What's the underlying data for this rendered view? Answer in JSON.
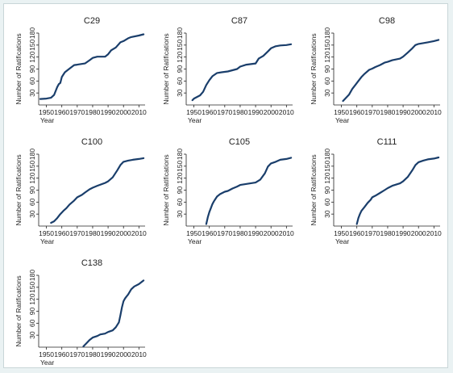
{
  "figure": {
    "background": "#ffffff",
    "line_color": "#1a3e6b",
    "axis_color": "#222222"
  },
  "chart_data": [
    {
      "type": "line",
      "title": "C29",
      "xlabel": "Year",
      "ylabel": "Number of Ratifications",
      "xlim": [
        1945,
        2014
      ],
      "ylim": [
        0,
        180
      ],
      "xticks": [
        1950,
        1960,
        1970,
        1980,
        1990,
        2000,
        2010
      ],
      "yticks": [
        30,
        60,
        90,
        120,
        150,
        180
      ],
      "x": [
        1946,
        1950,
        1953,
        1955,
        1957,
        1958,
        1959,
        1960,
        1961,
        1962,
        1964,
        1966,
        1968,
        1970,
        1975,
        1978,
        1980,
        1983,
        1988,
        1990,
        1992,
        1995,
        1998,
        2000,
        2003,
        2005,
        2010,
        2013
      ],
      "y": [
        15,
        16,
        18,
        25,
        45,
        52,
        55,
        70,
        76,
        82,
        88,
        94,
        100,
        101,
        104,
        112,
        118,
        121,
        121,
        127,
        137,
        144,
        157,
        160,
        167,
        170,
        174,
        177
      ]
    },
    {
      "type": "line",
      "title": "C87",
      "xlabel": "Year",
      "ylabel": "Number of Ratifications",
      "xlim": [
        1945,
        2014
      ],
      "ylim": [
        0,
        180
      ],
      "xticks": [
        1950,
        1960,
        1970,
        1980,
        1990,
        2000,
        2010
      ],
      "yticks": [
        30,
        60,
        90,
        120,
        150,
        180
      ],
      "x": [
        1949,
        1950,
        1952,
        1954,
        1956,
        1958,
        1960,
        1962,
        1965,
        1968,
        1972,
        1975,
        1978,
        1980,
        1984,
        1990,
        1992,
        1995,
        1998,
        2000,
        2003,
        2006,
        2010,
        2013
      ],
      "y": [
        12,
        16,
        20,
        24,
        33,
        50,
        62,
        72,
        80,
        82,
        84,
        87,
        90,
        96,
        101,
        104,
        116,
        123,
        134,
        142,
        147,
        149,
        150,
        152
      ]
    },
    {
      "type": "line",
      "title": "C98",
      "xlabel": "Year",
      "ylabel": "Number of Ratifications",
      "xlim": [
        1945,
        2014
      ],
      "ylim": [
        0,
        180
      ],
      "xticks": [
        1950,
        1960,
        1970,
        1980,
        1990,
        2000,
        2010
      ],
      "yticks": [
        30,
        60,
        90,
        120,
        150,
        180
      ],
      "x": [
        1951,
        1953,
        1955,
        1957,
        1959,
        1961,
        1963,
        1965,
        1968,
        1970,
        1972,
        1975,
        1978,
        1980,
        1983,
        1988,
        1990,
        1993,
        1996,
        1998,
        2000,
        2003,
        2006,
        2010,
        2013
      ],
      "y": [
        10,
        18,
        26,
        40,
        50,
        60,
        70,
        78,
        88,
        91,
        95,
        100,
        106,
        108,
        112,
        116,
        121,
        131,
        142,
        150,
        153,
        155,
        157,
        160,
        163
      ]
    },
    {
      "type": "line",
      "title": "C100",
      "xlabel": "Year",
      "ylabel": "Number of Ratifications",
      "xlim": [
        1945,
        2014
      ],
      "ylim": [
        0,
        180
      ],
      "xticks": [
        1950,
        1960,
        1970,
        1980,
        1990,
        2000,
        2010
      ],
      "yticks": [
        30,
        60,
        90,
        120,
        150,
        180
      ],
      "x": [
        1953,
        1955,
        1957,
        1959,
        1961,
        1963,
        1965,
        1968,
        1970,
        1973,
        1975,
        1978,
        1980,
        1983,
        1988,
        1990,
        1993,
        1996,
        1998,
        2000,
        2003,
        2006,
        2010,
        2013
      ],
      "y": [
        8,
        12,
        20,
        30,
        38,
        45,
        54,
        64,
        72,
        78,
        84,
        92,
        96,
        101,
        108,
        112,
        122,
        140,
        153,
        161,
        164,
        166,
        168,
        170
      ]
    },
    {
      "type": "line",
      "title": "C105",
      "xlabel": "Year",
      "ylabel": "Number of Ratifications",
      "xlim": [
        1945,
        2014
      ],
      "ylim": [
        0,
        180
      ],
      "xticks": [
        1950,
        1960,
        1970,
        1980,
        1990,
        2000,
        2010
      ],
      "yticks": [
        30,
        60,
        90,
        120,
        150,
        180
      ],
      "x": [
        1958,
        1959,
        1960,
        1961,
        1962,
        1963,
        1964,
        1965,
        1967,
        1970,
        1972,
        1975,
        1978,
        1980,
        1985,
        1990,
        1993,
        1996,
        1998,
        2000,
        2003,
        2006,
        2010,
        2013
      ],
      "y": [
        5,
        22,
        35,
        45,
        55,
        62,
        68,
        74,
        80,
        86,
        88,
        94,
        99,
        103,
        106,
        109,
        116,
        132,
        149,
        157,
        161,
        166,
        168,
        171
      ]
    },
    {
      "type": "line",
      "title": "C111",
      "xlabel": "Year",
      "ylabel": "Number of Ratifications",
      "xlim": [
        1945,
        2014
      ],
      "ylim": [
        0,
        180
      ],
      "xticks": [
        1950,
        1960,
        1970,
        1980,
        1990,
        2000,
        2010
      ],
      "yticks": [
        30,
        60,
        90,
        120,
        150,
        180
      ],
      "x": [
        1960,
        1961,
        1962,
        1963,
        1965,
        1967,
        1969,
        1970,
        1972,
        1975,
        1978,
        1980,
        1983,
        1988,
        1990,
        1993,
        1996,
        1998,
        2000,
        2003,
        2006,
        2010,
        2013
      ],
      "y": [
        5,
        20,
        30,
        38,
        48,
        58,
        66,
        72,
        76,
        83,
        90,
        95,
        101,
        107,
        112,
        123,
        140,
        153,
        160,
        164,
        167,
        169,
        172
      ]
    },
    {
      "type": "line",
      "title": "C138",
      "xlabel": "Year",
      "ylabel": "Number of Ratifications",
      "xlim": [
        1945,
        2014
      ],
      "ylim": [
        0,
        180
      ],
      "xticks": [
        1950,
        1960,
        1970,
        1980,
        1990,
        2000,
        2010
      ],
      "yticks": [
        30,
        60,
        90,
        120,
        150,
        180
      ],
      "x": [
        1974,
        1976,
        1978,
        1980,
        1983,
        1985,
        1988,
        1990,
        1993,
        1995,
        1997,
        1998,
        1999,
        2000,
        2001,
        2002,
        2003,
        2005,
        2007,
        2010,
        2013
      ],
      "y": [
        2,
        10,
        18,
        24,
        28,
        32,
        34,
        38,
        42,
        50,
        62,
        80,
        100,
        115,
        122,
        127,
        132,
        145,
        152,
        158,
        167
      ]
    }
  ]
}
